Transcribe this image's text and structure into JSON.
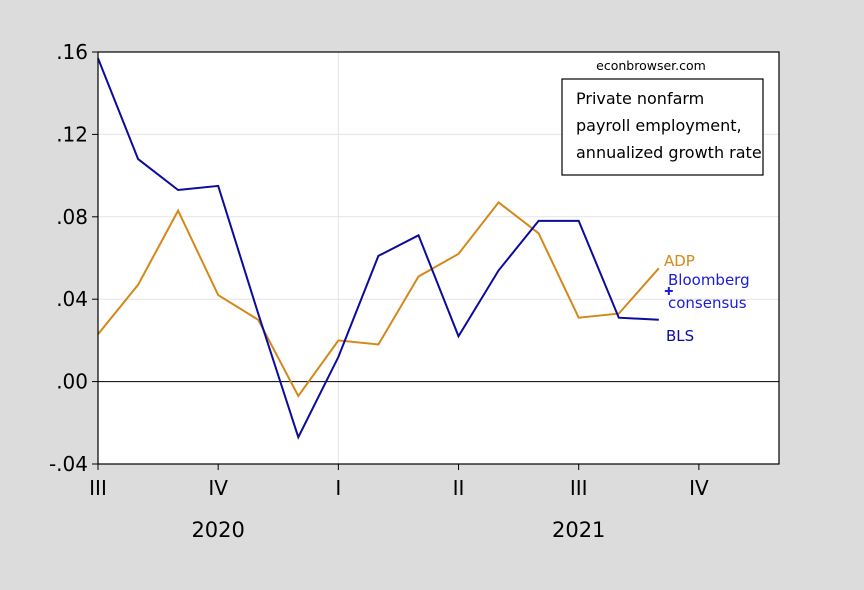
{
  "watermark": "econbrowser.com",
  "title_lines": [
    "Private nonfarm",
    "payroll employment,",
    "annualized growth rate"
  ],
  "colors": {
    "bls": "#0b0b9c",
    "adp": "#d4881a",
    "consensus": "#1a1adc",
    "background": "#dcdcdc",
    "plot_bg": "#ffffff"
  },
  "chart_data": {
    "type": "line",
    "title": "Private nonfarm payroll employment, annualized growth rate",
    "xlabel": "",
    "ylabel": "",
    "ylim": [
      -0.04,
      0.16
    ],
    "y_ticks": [
      0.16,
      0.12,
      0.08,
      0.04,
      0.0,
      -0.04
    ],
    "y_tick_labels": [
      ".16",
      ".12",
      ".08",
      ".04",
      ".00",
      "-.04"
    ],
    "x_range": [
      "2020-07",
      "2021-12"
    ],
    "quarter_ticks": [
      {
        "label": "III",
        "month": "2020-07"
      },
      {
        "label": "IV",
        "month": "2020-10"
      },
      {
        "label": "I",
        "month": "2021-01"
      },
      {
        "label": "II",
        "month": "2021-04"
      },
      {
        "label": "III",
        "month": "2021-07"
      },
      {
        "label": "IV",
        "month": "2021-10"
      }
    ],
    "years": [
      {
        "label": "2020",
        "month": "2020-10"
      },
      {
        "label": "2021",
        "month": "2021-07"
      }
    ],
    "grid": true,
    "series": [
      {
        "name": "BLS",
        "x": [
          "2020-07",
          "2020-08",
          "2020-09",
          "2020-10",
          "2020-11",
          "2020-12",
          "2021-01",
          "2021-02",
          "2021-03",
          "2021-04",
          "2021-05",
          "2021-06",
          "2021-07",
          "2021-08",
          "2021-09"
        ],
        "values": [
          0.157,
          0.108,
          0.093,
          0.095,
          0.033,
          -0.027,
          0.012,
          0.061,
          0.071,
          0.022,
          0.054,
          0.078,
          0.078,
          0.031,
          0.03
        ]
      },
      {
        "name": "ADP",
        "x": [
          "2020-07",
          "2020-08",
          "2020-09",
          "2020-10",
          "2020-11",
          "2020-12",
          "2021-01",
          "2021-02",
          "2021-03",
          "2021-04",
          "2021-05",
          "2021-06",
          "2021-07",
          "2021-08",
          "2021-09"
        ],
        "values": [
          0.023,
          0.047,
          0.083,
          0.042,
          0.03,
          -0.007,
          0.02,
          0.018,
          0.051,
          0.062,
          0.087,
          0.072,
          0.031,
          0.033,
          0.055
        ]
      },
      {
        "name": "Bloomberg consensus",
        "x": [
          "2021-09"
        ],
        "values": [
          0.044
        ]
      }
    ],
    "annotations": [
      "ADP",
      "Bloomberg",
      "consensus",
      "BLS"
    ]
  }
}
